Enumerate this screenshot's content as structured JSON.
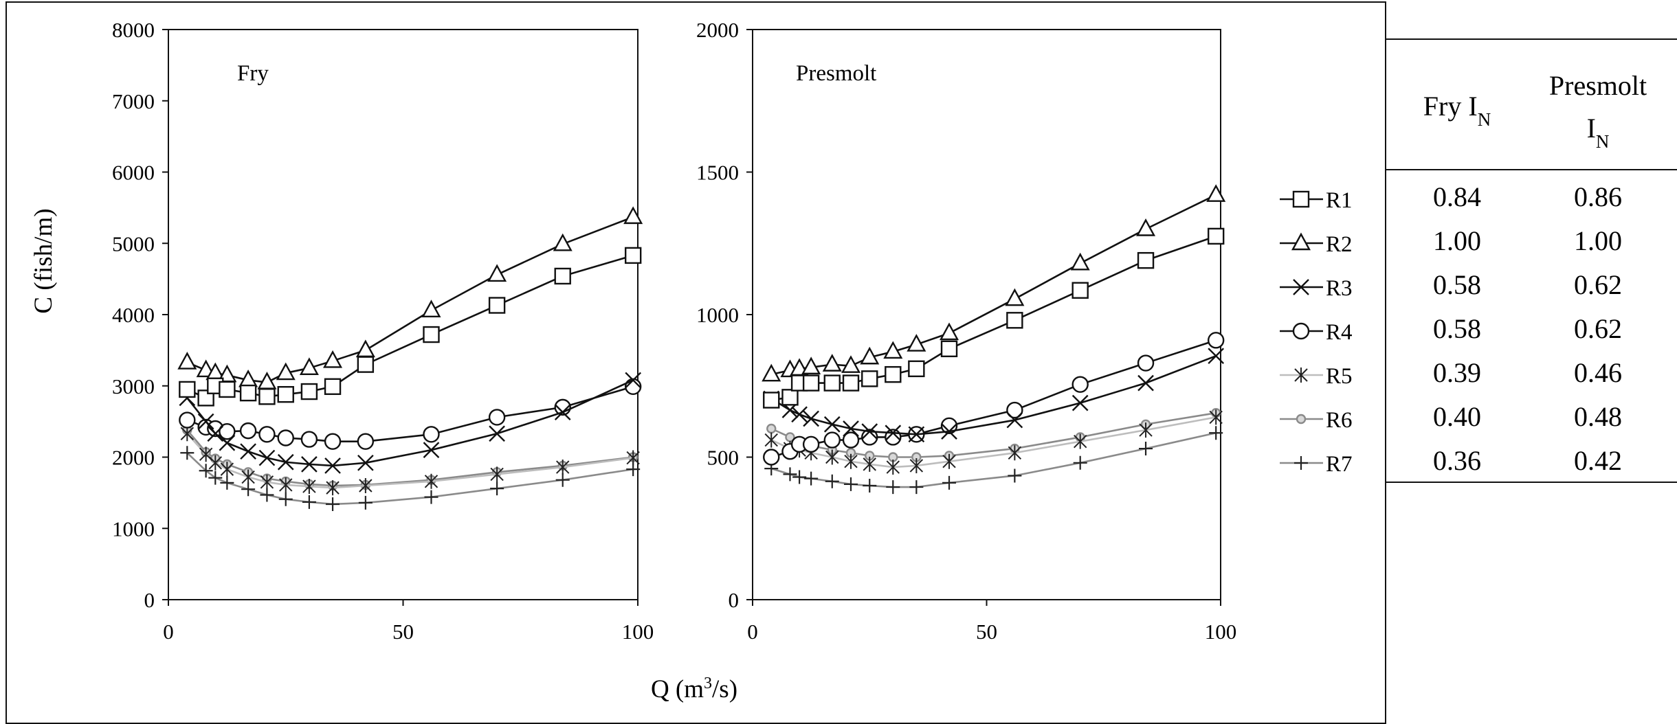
{
  "chart_data": {
    "type": "line",
    "ylabel": "C (fish/m)",
    "xlabel": "Q (m",
    "xlabel_sup": "3",
    "xlabel_tail": "/s)",
    "x": [
      4,
      8,
      10,
      12.5,
      17,
      21,
      25,
      30,
      35,
      42,
      56,
      70,
      84,
      99
    ],
    "xlim": [
      0,
      100
    ],
    "xticks": [
      0,
      50,
      100
    ],
    "panels": [
      {
        "name": "Fry",
        "ylim": [
          0,
          8000
        ],
        "yticks": [
          0,
          1000,
          2000,
          3000,
          4000,
          5000,
          6000,
          7000,
          8000
        ],
        "series": [
          {
            "name": "R1",
            "values": [
              2950,
              2830,
              3000,
              2950,
              2900,
              2850,
              2880,
              2920,
              2990,
              3300,
              3720,
              4130,
              4540,
              4830
            ]
          },
          {
            "name": "R2",
            "values": [
              3330,
              3220,
              3180,
              3150,
              3080,
              3050,
              3180,
              3250,
              3350,
              3500,
              4060,
              4560,
              4990,
              5370
            ]
          },
          {
            "name": "R3",
            "values": [
              2830,
              2500,
              2330,
              2200,
              2080,
              1990,
              1930,
              1900,
              1880,
              1920,
              2100,
              2330,
              2630,
              3080
            ]
          },
          {
            "name": "R4",
            "values": [
              2520,
              2420,
              2400,
              2360,
              2370,
              2320,
              2270,
              2250,
              2220,
              2220,
              2320,
              2560,
              2700,
              2990
            ]
          },
          {
            "name": "R5",
            "values": [
              2330,
              2040,
              1920,
              1830,
              1720,
              1650,
              1610,
              1590,
              1570,
              1600,
              1660,
              1760,
              1860,
              1990
            ]
          },
          {
            "name": "R6",
            "values": [
              2380,
              2070,
              1980,
              1900,
              1790,
              1700,
              1660,
              1620,
              1600,
              1610,
              1680,
              1790,
              1880,
              2000
            ]
          },
          {
            "name": "R7",
            "values": [
              2060,
              1810,
              1710,
              1640,
              1550,
              1470,
              1410,
              1370,
              1340,
              1360,
              1440,
              1560,
              1680,
              1830
            ]
          }
        ]
      },
      {
        "name": "Presmolt",
        "ylim": [
          0,
          2000
        ],
        "yticks": [
          0,
          500,
          1000,
          1500,
          2000
        ],
        "series": [
          {
            "name": "R1",
            "values": [
              700,
              710,
              760,
              760,
              760,
              760,
              775,
              790,
              810,
              880,
              980,
              1085,
              1190,
              1275
            ]
          },
          {
            "name": "R2",
            "values": [
              790,
              805,
              810,
              815,
              825,
              820,
              850,
              870,
              895,
              935,
              1055,
              1180,
              1300,
              1420
            ]
          },
          {
            "name": "R3",
            "values": [
              705,
              665,
              650,
              635,
              615,
              600,
              590,
              585,
              580,
              590,
              630,
              690,
              760,
              855
            ]
          },
          {
            "name": "R4",
            "values": [
              500,
              520,
              545,
              545,
              560,
              560,
              570,
              570,
              580,
              610,
              665,
              755,
              830,
              910
            ]
          },
          {
            "name": "R5",
            "values": [
              560,
              530,
              525,
              515,
              500,
              485,
              475,
              465,
              470,
              485,
              515,
              555,
              595,
              640
            ]
          },
          {
            "name": "R6",
            "values": [
              600,
              570,
              555,
              540,
              525,
              515,
              505,
              500,
              500,
              505,
              530,
              570,
              615,
              655
            ]
          },
          {
            "name": "R7",
            "values": [
              460,
              440,
              430,
              425,
              415,
              405,
              400,
              395,
              395,
              410,
              435,
              480,
              530,
              585
            ]
          }
        ]
      }
    ],
    "legend": [
      "R1",
      "R2",
      "R3",
      "R4",
      "R5",
      "R6",
      "R7"
    ],
    "colors": {
      "R1": "#111111",
      "R2": "#111111",
      "R3": "#111111",
      "R4": "#111111",
      "R5": "#bdbdbd",
      "R6": "#8a8a8a",
      "R7": "#8a8a8a"
    },
    "markers": {
      "R1": "square",
      "R2": "triangle",
      "R3": "x",
      "R4": "circle",
      "R5": "star",
      "R6": "small-circle",
      "R7": "plus"
    }
  },
  "table": {
    "headers": [
      {
        "main": "Fry I",
        "sub": "N"
      },
      {
        "line1": "Presmolt",
        "main": "I",
        "sub": "N"
      }
    ],
    "rows": [
      [
        "0.84",
        "0.86"
      ],
      [
        "1.00",
        "1.00"
      ],
      [
        "0.58",
        "0.62"
      ],
      [
        "0.58",
        "0.62"
      ],
      [
        "0.39",
        "0.46"
      ],
      [
        "0.40",
        "0.48"
      ],
      [
        "0.36",
        "0.42"
      ]
    ]
  }
}
